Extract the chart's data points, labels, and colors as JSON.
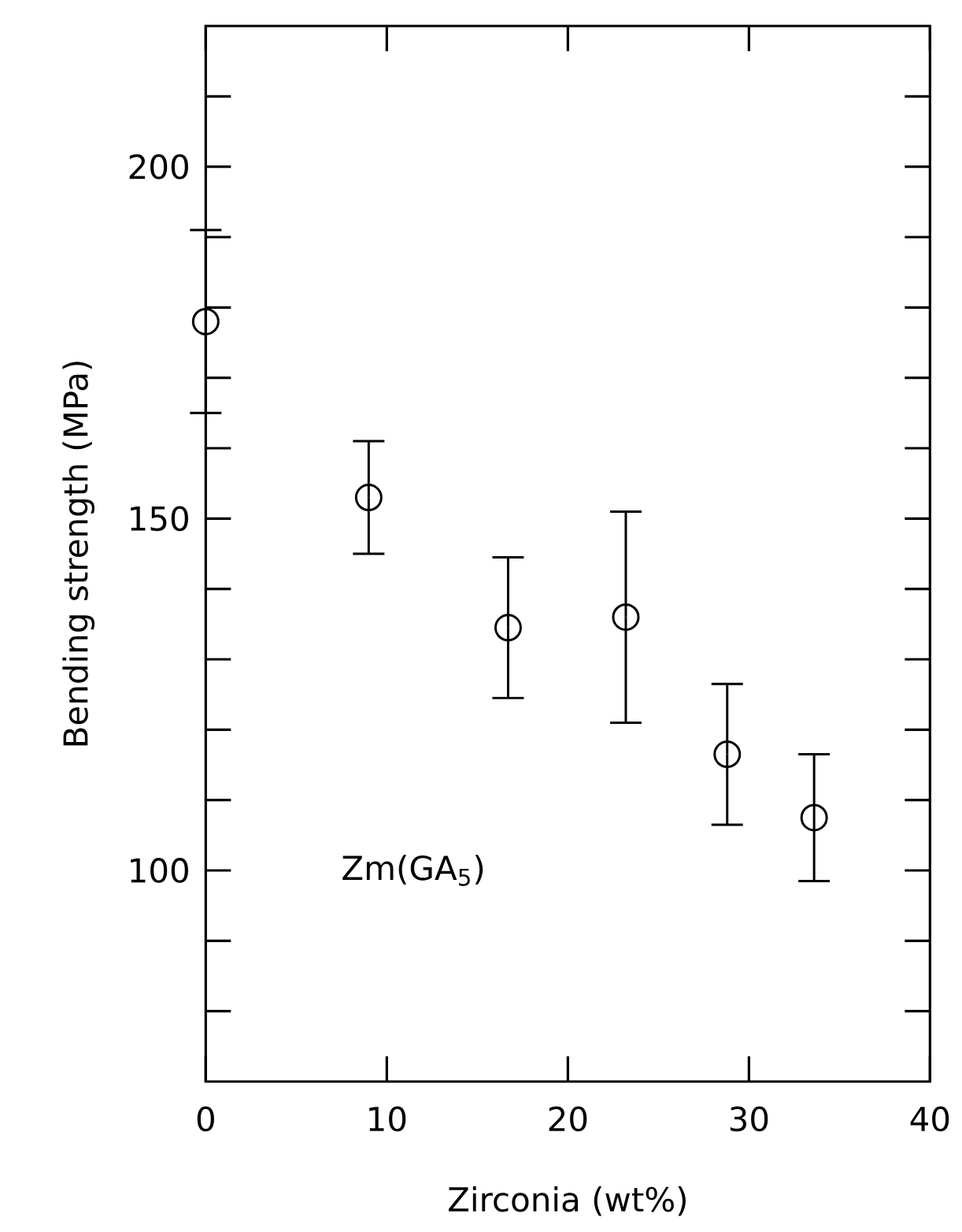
{
  "chart_data": {
    "type": "scatter",
    "xlabel": "Zirconia (wt%)",
    "ylabel": "Bending strength (MPa)",
    "annotations": [
      "Zm(GA$_{5}$)"
    ],
    "x": [
      0,
      9,
      16.7,
      23.2,
      28.8,
      33.6
    ],
    "values": [
      178,
      153,
      134.5,
      136,
      116.5,
      107.5
    ],
    "errors": [
      13,
      8,
      10,
      15,
      10,
      9
    ],
    "color": "#000000",
    "marker": "circle",
    "xlim": [
      0,
      40
    ],
    "xticks": [
      0,
      10,
      20,
      30,
      40
    ],
    "ylim": [
      70,
      220
    ],
    "yticks": [
      {
        "value": 80,
        "label": null
      },
      {
        "value": 90,
        "label": null
      },
      100,
      {
        "value": 110,
        "label": null
      },
      {
        "value": 120,
        "label": null
      },
      {
        "value": 130,
        "label": null
      },
      {
        "value": 140,
        "label": null
      },
      150,
      {
        "value": 160,
        "label": null
      },
      {
        "value": 170,
        "label": null
      },
      {
        "value": 180,
        "label": null
      },
      {
        "value": 190,
        "label": null
      },
      200,
      {
        "value": 210,
        "label": null
      }
    ]
  }
}
